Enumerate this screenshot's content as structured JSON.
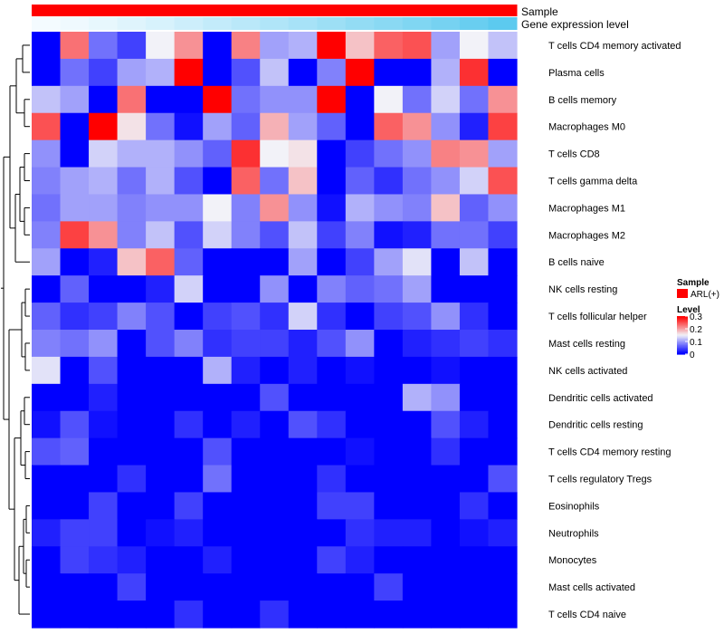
{
  "chart_data": {
    "type": "heatmap",
    "tracks": {
      "sample": "Sample",
      "expression": "Gene expression level"
    },
    "row_names": [
      "T cells CD4 memory activated",
      "Plasma cells",
      "B cells memory",
      "Macrophages M0",
      "T cells CD8",
      "T cells gamma delta",
      "Macrophages M1",
      "Macrophages M2",
      "B cells naive",
      "NK cells resting",
      "T cells follicular helper",
      "Mast cells resting",
      "NK cells activated",
      "Dendritic cells activated",
      "Dendritic cells resting",
      "T cells CD4 memory resting",
      "T cells regulatory  Tregs",
      "Eosinophils",
      "Neutrophils",
      "Monocytes",
      "Mast cells activated",
      "T cells CD4 naive"
    ],
    "values": [
      [
        0.0,
        0.23,
        0.07,
        0.04,
        0.15,
        0.21,
        0.0,
        0.22,
        0.1,
        0.11,
        0.3,
        0.18,
        0.24,
        0.25,
        0.1,
        0.15,
        0.12
      ],
      [
        0.0,
        0.07,
        0.04,
        0.1,
        0.11,
        0.3,
        0.0,
        0.05,
        0.12,
        0.0,
        0.08,
        0.3,
        0.0,
        0.0,
        0.11,
        0.27,
        0.0
      ],
      [
        0.12,
        0.1,
        0.0,
        0.23,
        0.0,
        0.0,
        0.3,
        0.07,
        0.09,
        0.09,
        0.3,
        0.0,
        0.15,
        0.07,
        0.13,
        0.07,
        0.21
      ],
      [
        0.25,
        0.0,
        0.3,
        0.16,
        0.07,
        0.01,
        0.1,
        0.06,
        0.19,
        0.1,
        0.06,
        0.0,
        0.24,
        0.21,
        0.09,
        0.02,
        0.26
      ],
      [
        0.09,
        0.0,
        0.13,
        0.11,
        0.11,
        0.09,
        0.06,
        0.27,
        0.15,
        0.16,
        0.0,
        0.04,
        0.07,
        0.09,
        0.22,
        0.21,
        0.1
      ],
      [
        0.08,
        0.1,
        0.11,
        0.07,
        0.11,
        0.05,
        0.0,
        0.24,
        0.07,
        0.18,
        0.0,
        0.06,
        0.03,
        0.07,
        0.09,
        0.13,
        0.25
      ],
      [
        0.07,
        0.1,
        0.1,
        0.08,
        0.09,
        0.09,
        0.15,
        0.08,
        0.21,
        0.09,
        0.01,
        0.11,
        0.09,
        0.08,
        0.18,
        0.06,
        0.09
      ],
      [
        0.08,
        0.26,
        0.21,
        0.08,
        0.12,
        0.05,
        0.13,
        0.08,
        0.05,
        0.12,
        0.04,
        0.08,
        0.01,
        0.02,
        0.07,
        0.07,
        0.04
      ],
      [
        0.1,
        0.0,
        0.02,
        0.18,
        0.24,
        0.06,
        0.0,
        0.0,
        0.0,
        0.1,
        0.0,
        0.04,
        0.1,
        0.14,
        0.0,
        0.12,
        0.0
      ],
      [
        0.0,
        0.06,
        0.0,
        0.0,
        0.02,
        0.13,
        0.0,
        0.0,
        0.09,
        0.0,
        0.08,
        0.06,
        0.07,
        0.1,
        0.0,
        0.0,
        0.0
      ],
      [
        0.06,
        0.03,
        0.04,
        0.08,
        0.05,
        0.0,
        0.04,
        0.05,
        0.03,
        0.13,
        0.03,
        0.0,
        0.04,
        0.05,
        0.09,
        0.03,
        0.0
      ],
      [
        0.08,
        0.07,
        0.09,
        0.0,
        0.05,
        0.08,
        0.03,
        0.04,
        0.04,
        0.02,
        0.05,
        0.09,
        0.0,
        0.02,
        0.03,
        0.04,
        0.03
      ],
      [
        0.14,
        0.0,
        0.05,
        0.0,
        0.0,
        0.0,
        0.11,
        0.02,
        0.0,
        0.02,
        0.0,
        0.01,
        0.0,
        0.0,
        0.01,
        0.0,
        0.0
      ],
      [
        0.0,
        0.0,
        0.02,
        0.0,
        0.0,
        0.0,
        0.0,
        0.0,
        0.05,
        0.0,
        0.0,
        0.0,
        0.0,
        0.11,
        0.09,
        0.0,
        0.0
      ],
      [
        0.01,
        0.05,
        0.01,
        0.0,
        0.0,
        0.03,
        0.0,
        0.02,
        0.0,
        0.05,
        0.03,
        0.0,
        0.0,
        0.0,
        0.05,
        0.02,
        0.0
      ],
      [
        0.05,
        0.06,
        0.0,
        0.0,
        0.0,
        0.0,
        0.05,
        0.0,
        0.0,
        0.0,
        0.0,
        0.01,
        0.0,
        0.0,
        0.03,
        0.0,
        0.0
      ],
      [
        0.0,
        0.0,
        0.0,
        0.03,
        0.0,
        0.0,
        0.07,
        0.0,
        0.0,
        0.0,
        0.03,
        0.0,
        0.0,
        0.0,
        0.0,
        0.0,
        0.05
      ],
      [
        0.0,
        0.0,
        0.04,
        0.0,
        0.0,
        0.04,
        0.0,
        0.0,
        0.0,
        0.0,
        0.04,
        0.04,
        0.0,
        0.0,
        0.0,
        0.03,
        0.0
      ],
      [
        0.02,
        0.04,
        0.04,
        0.0,
        0.01,
        0.02,
        0.0,
        0.0,
        0.0,
        0.0,
        0.0,
        0.03,
        0.02,
        0.02,
        0.0,
        0.01,
        0.02
      ],
      [
        0.0,
        0.04,
        0.03,
        0.02,
        0.0,
        0.0,
        0.02,
        0.0,
        0.0,
        0.0,
        0.04,
        0.02,
        0.0,
        0.0,
        0.0,
        0.0,
        0.0
      ],
      [
        0.0,
        0.0,
        0.0,
        0.04,
        0.0,
        0.0,
        0.0,
        0.0,
        0.0,
        0.0,
        0.0,
        0.0,
        0.04,
        0.0,
        0.0,
        0.0,
        0.0
      ],
      [
        0.0,
        0.0,
        0.0,
        0.0,
        0.0,
        0.03,
        0.0,
        0.0,
        0.03,
        0.0,
        0.0,
        0.0,
        0.0,
        0.0,
        0.0,
        0.0,
        0.0
      ]
    ],
    "expression_track": [
      0.02,
      0.05,
      0.1,
      0.15,
      0.2,
      0.26,
      0.32,
      0.38,
      0.44,
      0.5,
      0.56,
      0.62,
      0.68,
      0.74,
      0.8,
      0.88,
      0.96
    ],
    "color_scale": {
      "min": 0,
      "max": 0.3,
      "low_color": "#0000ff",
      "mid_color": "#f2f2f8",
      "high_color": "#ff0000"
    },
    "track_colors": {
      "sample": "#ff0000",
      "expression_low": "#f7fcff",
      "expression_high": "#56c8ee"
    },
    "legend": {
      "sample_title": "Sample",
      "sample_entry": "ARL(+)",
      "sample_color": "#ff0000",
      "level_title": "Level",
      "level_ticks": [
        "0.3",
        "0.2",
        "0.1",
        "0"
      ],
      "level_tick_values": [
        0.3,
        0.2,
        0.1,
        0
      ]
    }
  }
}
